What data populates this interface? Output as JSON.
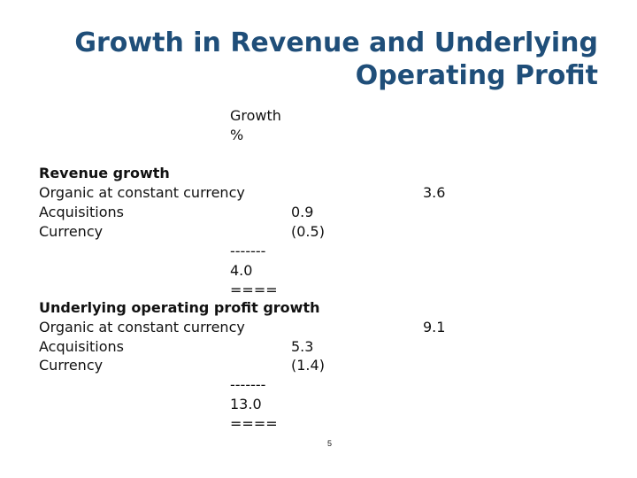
{
  "title_line1": "Growth in Revenue and Underlying",
  "title_line2": "Operating Profit",
  "column_header": [
    "Growth",
    "%"
  ],
  "sections": [
    {
      "heading": "Revenue growth",
      "organic_label": "Organic at constant currency",
      "organic_value": "3.6",
      "acquisitions_label": "Acquisitions",
      "acquisitions_value": "0.9",
      "currency_label": "Currency",
      "currency_value": "(0.5)",
      "rule": "-------",
      "total": "4.0",
      "double_rule": "===="
    },
    {
      "heading": "Underlying operating profit growth",
      "organic_label": "Organic at constant currency",
      "organic_value": "9.1",
      "acquisitions_label": "Acquisitions",
      "acquisitions_value": "5.3",
      "currency_label": "Currency",
      "currency_value": "(1.4)",
      "rule": "-------",
      "total": "13.0",
      "double_rule": "===="
    }
  ],
  "page_number": "5",
  "colors": {
    "title": "#1f4e79",
    "text": "#111111",
    "background": "#ffffff"
  }
}
